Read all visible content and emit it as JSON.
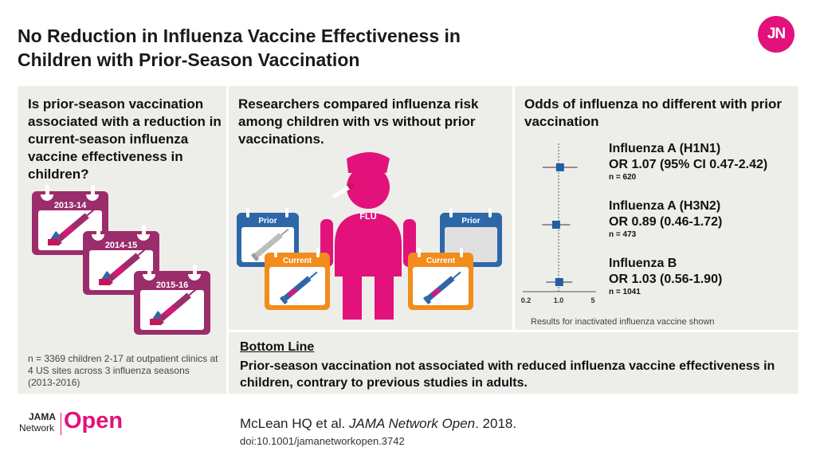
{
  "title": {
    "line1": "No Reduction in Influenza Vaccine Effectiveness in",
    "line2": "Children with Prior-Season Vaccination"
  },
  "brand": {
    "badge": "JN",
    "logo_jama": "JAMA",
    "logo_network": "Network",
    "logo_open": "Open"
  },
  "colors": {
    "magenta": "#e2127a",
    "plum": "#9b2d6c",
    "blue": "#2d67a8",
    "orange": "#f28c1c",
    "panel": "#ededea",
    "marker": "#1f5fa3"
  },
  "panel1": {
    "question": "Is prior-season vaccination associated with a reduction in current-season influenza vaccine effectiveness in children?",
    "seasons": [
      "2013-14",
      "2014-15",
      "2015-16"
    ],
    "note": "n = 3369 children 2-17 at outpatient clinics at 4 US sites across 3 influenza seasons (2013-2016)"
  },
  "panel2": {
    "text": "Researchers compared influenza risk among children with vs without prior vaccinations.",
    "prior_label": "Prior",
    "current_label": "Current",
    "flu_label": "FLU"
  },
  "panel3": {
    "heading": "Odds of influenza no different with prior vaccination",
    "results": [
      {
        "name": "Influenza A (H1N1)",
        "or": "OR 1.07 (95% CI 0.47-2.42)",
        "n": "n = 620"
      },
      {
        "name": "Influenza A (H3N2)",
        "or": "OR 0.89 (0.46-1.72)",
        "n": "n = 473"
      },
      {
        "name": "Influenza B",
        "or": "OR 1.03 (0.56-1.90)",
        "n": "n = 1041"
      }
    ],
    "axis_ticks": [
      "0.2",
      "1.0",
      "5"
    ],
    "footnote": "Results for inactivated influenza vaccine shown"
  },
  "chart_data": {
    "type": "scatter",
    "x_scale": "log",
    "xlim": [
      0.2,
      5
    ],
    "reference_line": 1.0,
    "series": [
      {
        "name": "Influenza A (H1N1)",
        "estimate": 1.07,
        "ci": [
          0.47,
          2.42
        ],
        "n": 620
      },
      {
        "name": "Influenza A (H3N2)",
        "estimate": 0.89,
        "ci": [
          0.46,
          1.72
        ],
        "n": 473
      },
      {
        "name": "Influenza B",
        "estimate": 1.03,
        "ci": [
          0.56,
          1.9
        ],
        "n": 1041
      }
    ]
  },
  "bottom_line": {
    "heading": "Bottom Line",
    "text": "Prior-season vaccination not associated with reduced influenza vaccine effectiveness in children, contrary to previous studies in adults."
  },
  "citation": {
    "authors": "McLean HQ et al.",
    "journal": "JAMA Network Open",
    "year": ". 2018.",
    "doi": "doi:10.1001/jamanetworkopen.3742"
  }
}
